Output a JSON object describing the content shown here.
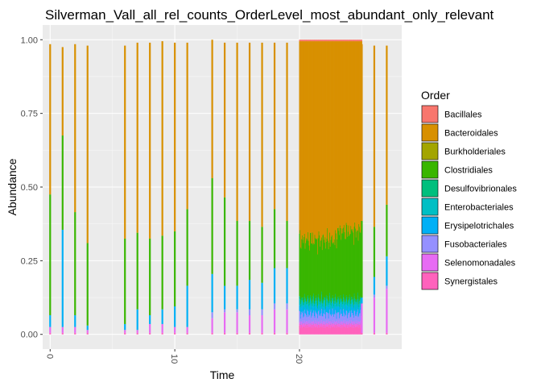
{
  "chart_data": {
    "type": "bar",
    "stacked": true,
    "title": "Silverman_Vall_all_rel_counts_OrderLevel_most_abundant_only_relevant",
    "xlabel": "Time",
    "ylabel": "Abundance",
    "xlim": [
      -0.6,
      28.2
    ],
    "ylim": [
      -0.05,
      1.05
    ],
    "x_ticks": [
      0,
      10,
      20
    ],
    "y_ticks": [
      0.0,
      0.25,
      0.5,
      0.75,
      1.0
    ],
    "y_tick_labels": [
      "0.00",
      "0.25",
      "0.50",
      "0.75",
      "1.00"
    ],
    "grid": true,
    "legend_position": "right",
    "legend_title": "Order",
    "series": [
      {
        "name": "Bacillales",
        "color": "#F8766D"
      },
      {
        "name": "Bacteroidales",
        "color": "#D89000"
      },
      {
        "name": "Burkholderiales",
        "color": "#A3A500"
      },
      {
        "name": "Clostridiales",
        "color": "#39B600"
      },
      {
        "name": "Desulfovibrionales",
        "color": "#00BF7D"
      },
      {
        "name": "Enterobacteriales",
        "color": "#00BFC4"
      },
      {
        "name": "Erysipelotrichales",
        "color": "#00B0F6"
      },
      {
        "name": "Fusobacteriales",
        "color": "#9590FF"
      },
      {
        "name": "Selenomonadales",
        "color": "#E76BF3"
      },
      {
        "name": "Synergistales",
        "color": "#FF62BC"
      }
    ],
    "samples": [
      {
        "x": 0,
        "values": {
          "Synergistales": 0.005,
          "Selenomonadales": 0.02,
          "Erysipelotrichales": 0.04,
          "Clostridiales": 0.41,
          "Bacteroidales": 0.51
        }
      },
      {
        "x": 1,
        "values": {
          "Synergistales": 0.005,
          "Selenomonadales": 0.02,
          "Erysipelotrichales": 0.33,
          "Clostridiales": 0.32,
          "Bacteroidales": 0.3
        }
      },
      {
        "x": 2,
        "values": {
          "Synergistales": 0.005,
          "Selenomonadales": 0.02,
          "Erysipelotrichales": 0.04,
          "Clostridiales": 0.35,
          "Bacteroidales": 0.57
        }
      },
      {
        "x": 3,
        "values": {
          "Synergistales": 0.005,
          "Selenomonadales": 0.01,
          "Erysipelotrichales": 0.015,
          "Clostridiales": 0.28,
          "Bacteroidales": 0.67
        }
      },
      {
        "x": 6,
        "values": {
          "Synergistales": 0.005,
          "Selenomonadales": 0.01,
          "Erysipelotrichales": 0.02,
          "Clostridiales": 0.29,
          "Bacteroidales": 0.655
        }
      },
      {
        "x": 7,
        "values": {
          "Synergistales": 0.005,
          "Selenomonadales": 0.01,
          "Erysipelotrichales": 0.07,
          "Clostridiales": 0.26,
          "Bacteroidales": 0.645
        }
      },
      {
        "x": 8,
        "values": {
          "Synergistales": 0.005,
          "Selenomonadales": 0.03,
          "Erysipelotrichales": 0.03,
          "Clostridiales": 0.26,
          "Bacteroidales": 0.665
        }
      },
      {
        "x": 9,
        "values": {
          "Synergistales": 0.005,
          "Selenomonadales": 0.03,
          "Erysipelotrichales": 0.05,
          "Clostridiales": 0.25,
          "Bacteroidales": 0.66
        }
      },
      {
        "x": 10,
        "values": {
          "Synergistales": 0.005,
          "Selenomonadales": 0.02,
          "Erysipelotrichales": 0.07,
          "Clostridiales": 0.255,
          "Bacteroidales": 0.64
        }
      },
      {
        "x": 11,
        "values": {
          "Synergistales": 0.005,
          "Selenomonadales": 0.02,
          "Erysipelotrichales": 0.14,
          "Clostridiales": 0.26,
          "Bacteroidales": 0.565
        }
      },
      {
        "x": 13,
        "values": {
          "Synergistales": 0.005,
          "Selenomonadales": 0.05,
          "Fusobacteriales": 0.02,
          "Erysipelotrichales": 0.13,
          "Clostridiales": 0.325,
          "Bacteroidales": 0.47
        }
      },
      {
        "x": 14,
        "values": {
          "Synergistales": 0.005,
          "Selenomonadales": 0.07,
          "Fusobacteriales": 0.01,
          "Erysipelotrichales": 0.08,
          "Clostridiales": 0.3,
          "Bacteroidales": 0.525
        }
      },
      {
        "x": 15,
        "values": {
          "Synergistales": 0.005,
          "Selenomonadales": 0.07,
          "Fusobacteriales": 0.01,
          "Erysipelotrichales": 0.08,
          "Clostridiales": 0.22,
          "Bacteroidales": 0.605
        }
      },
      {
        "x": 16,
        "values": {
          "Synergistales": 0.005,
          "Selenomonadales": 0.06,
          "Fusobacteriales": 0.02,
          "Erysipelotrichales": 0.1,
          "Clostridiales": 0.2,
          "Bacteroidales": 0.605
        }
      },
      {
        "x": 17,
        "values": {
          "Synergistales": 0.005,
          "Selenomonadales": 0.06,
          "Fusobacteriales": 0.02,
          "Erysipelotrichales": 0.09,
          "Clostridiales": 0.19,
          "Bacteroidales": 0.625
        }
      },
      {
        "x": 18,
        "values": {
          "Synergistales": 0.005,
          "Selenomonadales": 0.08,
          "Fusobacteriales": 0.02,
          "Erysipelotrichales": 0.12,
          "Clostridiales": 0.2,
          "Bacteroidales": 0.565
        }
      },
      {
        "x": 19,
        "values": {
          "Synergistales": 0.005,
          "Selenomonadales": 0.08,
          "Fusobacteriales": 0.02,
          "Erysipelotrichales": 0.12,
          "Clostridiales": 0.16,
          "Bacteroidales": 0.605
        }
      }
    ],
    "dense_block": {
      "x_range": [
        20,
        25
      ],
      "approx_composition": {
        "Synergistales": 0.03,
        "Selenomonadales": 0.01,
        "Fusobacteriales": 0.03,
        "Erysipelotrichales": 0.02,
        "Enterobacteriales": 0.02,
        "Desulfovibrionales": 0.01,
        "Clostridiales": 0.2,
        "Bacteroidales": 0.67,
        "Bacillales": 0.005
      }
    },
    "tail_samples": [
      {
        "x": 25,
        "values": {
          "Synergistales": 0.005,
          "Selenomonadales": 0.1,
          "Erysipelotrichales": 0.02,
          "Clostridiales": 0.26,
          "Bacteroidales": 0.6
        }
      },
      {
        "x": 26,
        "values": {
          "Synergistales": 0.005,
          "Selenomonadales": 0.12,
          "Fusobacteriales": 0.01,
          "Erysipelotrichales": 0.06,
          "Clostridiales": 0.17,
          "Bacteroidales": 0.615
        }
      },
      {
        "x": 27,
        "values": {
          "Synergistales": 0.005,
          "Selenomonadales": 0.15,
          "Fusobacteriales": 0.01,
          "Erysipelotrichales": 0.1,
          "Clostridiales": 0.175,
          "Bacteroidales": 0.54
        }
      }
    ]
  }
}
